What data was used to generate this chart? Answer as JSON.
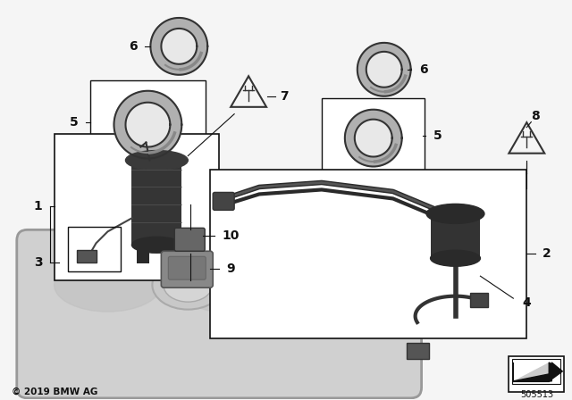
{
  "bg_color": "#f5f5f5",
  "copyright": "© 2019 BMW AG",
  "part_number": "505513",
  "line_color": "#111111",
  "dark_gray": "#333333",
  "mid_gray": "#888888",
  "light_gray": "#bbbbbb",
  "ring_fill": "#aaaaaa",
  "ring_inner": "#dddddd",
  "pump_dark": "#2a2a2a",
  "pump_mid": "#444444",
  "pump_light": "#666666",
  "tank_color": "#c8c8c8",
  "tank_edge": "#999999"
}
